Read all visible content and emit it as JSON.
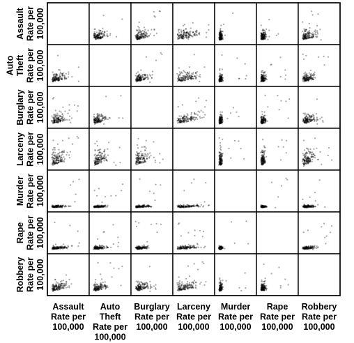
{
  "chart_data": {
    "type": "scatter",
    "title": "",
    "variables": [
      {
        "label_lines": [
          "Assault",
          "Rate per",
          "100,000"
        ]
      },
      {
        "label_lines": [
          "Auto",
          "Theft",
          "Rate per",
          "100,000"
        ]
      },
      {
        "label_lines": [
          "Burglary",
          "Rate per",
          "100,000"
        ]
      },
      {
        "label_lines": [
          "Larceny",
          "Rate per",
          "100,000"
        ]
      },
      {
        "label_lines": [
          "Murder",
          "Rate per",
          "100,000"
        ]
      },
      {
        "label_lines": [
          "Rape",
          "Rate per",
          "100,000"
        ]
      },
      {
        "label_lines": [
          "Robbery",
          "Rate per",
          "100,000"
        ]
      }
    ],
    "layout": "scatterplot-matrix",
    "diagonal": "empty",
    "axis_ticks": false,
    "point_color": "#000000"
  }
}
